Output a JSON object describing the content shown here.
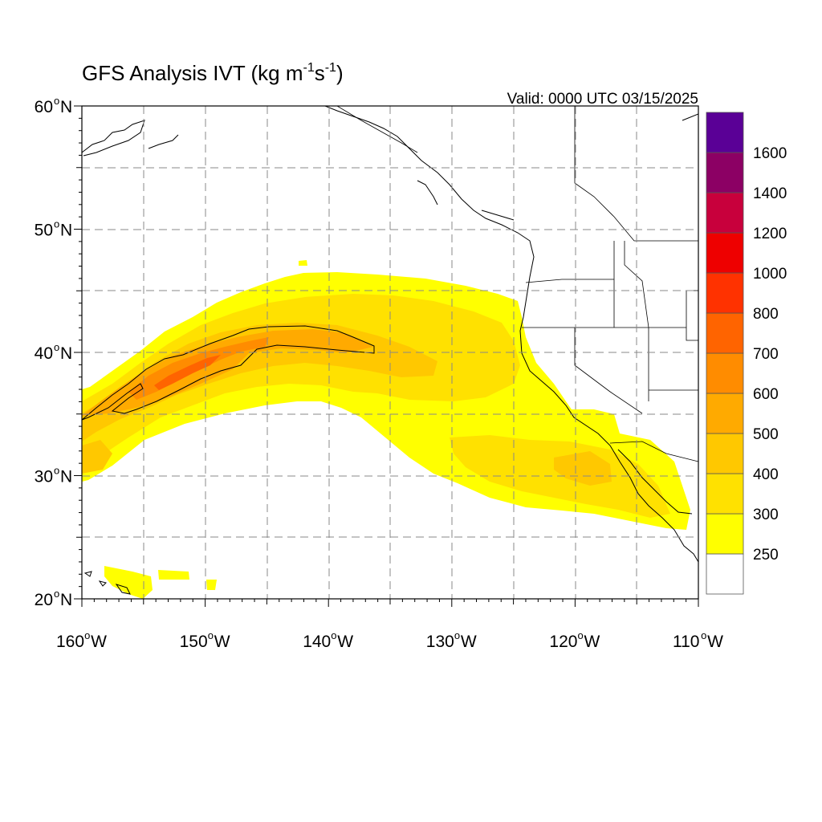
{
  "title": {
    "main": "GFS Analysis IVT (kg m",
    "exp1": "-1",
    "mid": "s",
    "exp2": "-1",
    "end": ")"
  },
  "valid_label": "Valid: 0000 UTC 03/15/2025",
  "map": {
    "projection": "cylindrical-equidistant",
    "lon_range": [
      -160,
      -110
    ],
    "lat_range": [
      20,
      60
    ],
    "grid": true,
    "lat_ticks": [
      {
        "value": 60,
        "num": "60",
        "dir": "N"
      },
      {
        "value": 50,
        "num": "50",
        "dir": "N"
      },
      {
        "value": 40,
        "num": "40",
        "dir": "N"
      },
      {
        "value": 30,
        "num": "30",
        "dir": "N"
      },
      {
        "value": 20,
        "num": "20",
        "dir": "N"
      }
    ],
    "lon_ticks": [
      {
        "value": -160,
        "num": "160",
        "dir": "W"
      },
      {
        "value": -150,
        "num": "150",
        "dir": "W"
      },
      {
        "value": -140,
        "num": "140",
        "dir": "W"
      },
      {
        "value": -130,
        "num": "130",
        "dir": "W"
      },
      {
        "value": -120,
        "num": "120",
        "dir": "W"
      },
      {
        "value": -110,
        "num": "110",
        "dir": "W"
      }
    ],
    "contour_level": 500
  },
  "colorbar": {
    "levels": [
      250,
      300,
      400,
      500,
      600,
      700,
      800,
      1000,
      1200,
      1400,
      1600
    ],
    "labels": [
      "250",
      "300",
      "400",
      "500",
      "600",
      "700",
      "800",
      "1000",
      "1200",
      "1400",
      "1600"
    ],
    "colors": [
      "#ffffff",
      "#ffff00",
      "#ffe100",
      "#ffc800",
      "#ffaa00",
      "#ff8c00",
      "#ff6400",
      "#ff3200",
      "#ee0000",
      "#c8003c",
      "#8c0064",
      "#5a0096"
    ]
  },
  "colors": {
    "land_line": "#000000",
    "border_line": "#777777",
    "grid_line": "#888888"
  }
}
